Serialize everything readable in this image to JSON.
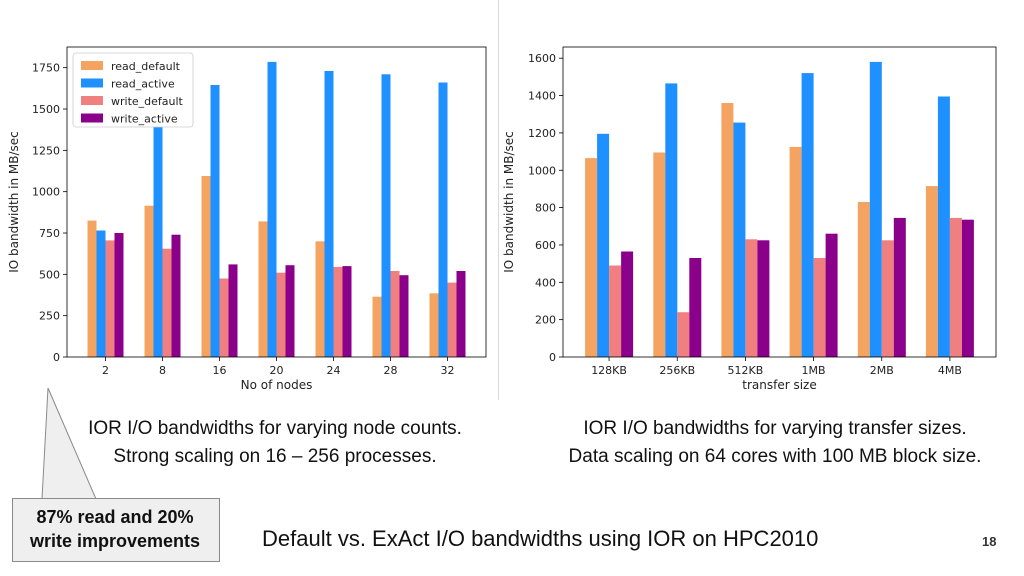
{
  "chart_data": [
    {
      "type": "bar",
      "xlabel": "No of nodes",
      "ylabel": "IO bandwidth in MB/sec",
      "categories": [
        "2",
        "8",
        "16",
        "20",
        "24",
        "28",
        "32"
      ],
      "ylim": [
        0,
        1875
      ],
      "yticks": [
        0,
        250,
        500,
        750,
        1000,
        1250,
        1500,
        1750
      ],
      "legend_position": "top-left",
      "grid": false,
      "series": [
        {
          "name": "read_default",
          "color": "#f4a460",
          "values": [
            825,
            915,
            1095,
            820,
            700,
            365,
            385
          ]
        },
        {
          "name": "read_active",
          "color": "#1e90ff",
          "values": [
            765,
            1395,
            1645,
            1785,
            1730,
            1710,
            1660
          ]
        },
        {
          "name": "write_default",
          "color": "#f08080",
          "values": [
            705,
            655,
            475,
            510,
            545,
            520,
            450
          ]
        },
        {
          "name": "write_active",
          "color": "#8b008b",
          "values": [
            750,
            740,
            560,
            555,
            550,
            495,
            520
          ]
        }
      ]
    },
    {
      "type": "bar",
      "xlabel": "transfer size",
      "ylabel": "IO bandwidth in MB/sec",
      "categories": [
        "128KB",
        "256KB",
        "512KB",
        "1MB",
        "2MB",
        "4MB"
      ],
      "ylim": [
        0,
        1660
      ],
      "yticks": [
        0,
        200,
        400,
        600,
        800,
        1000,
        1200,
        1400,
        1600
      ],
      "grid": false,
      "series": [
        {
          "name": "read_default",
          "color": "#f4a460",
          "values": [
            1065,
            1095,
            1360,
            1125,
            830,
            915
          ]
        },
        {
          "name": "read_active",
          "color": "#1e90ff",
          "values": [
            1195,
            1465,
            1255,
            1520,
            1580,
            1395
          ]
        },
        {
          "name": "write_default",
          "color": "#f08080",
          "values": [
            490,
            240,
            630,
            530,
            625,
            745
          ]
        },
        {
          "name": "write_active",
          "color": "#8b008b",
          "values": [
            565,
            530,
            625,
            660,
            745,
            735
          ]
        }
      ]
    }
  ],
  "captions": {
    "left_line1": "IOR I/O bandwidths for varying node counts.",
    "left_line2": "Strong scaling on 16 – 256 processes.",
    "right_line1": "IOR I/O bandwidths for varying transfer sizes.",
    "right_line2": "Data scaling on 64 cores with 100 MB block size."
  },
  "callout": {
    "line1": "87% read and 20%",
    "line2": "write improvements",
    "fill": "#efefef"
  },
  "slide": {
    "title": "Default vs. ExAct I/O bandwidths using IOR on HPC2010",
    "page_number": "18"
  }
}
